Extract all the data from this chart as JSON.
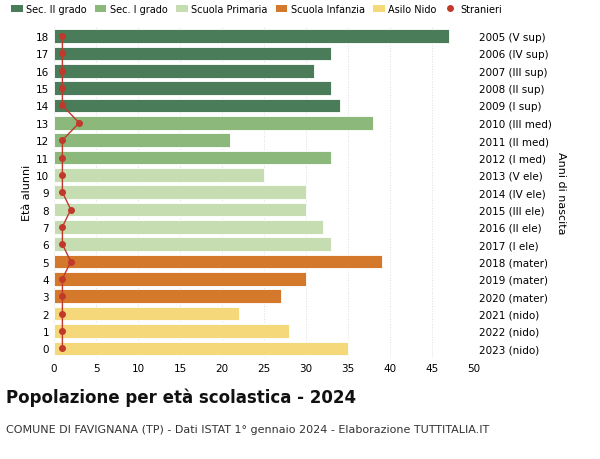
{
  "ages": [
    18,
    17,
    16,
    15,
    14,
    13,
    12,
    11,
    10,
    9,
    8,
    7,
    6,
    5,
    4,
    3,
    2,
    1,
    0
  ],
  "bar_values": [
    47,
    33,
    31,
    33,
    34,
    38,
    21,
    33,
    25,
    30,
    30,
    32,
    33,
    39,
    30,
    27,
    22,
    28,
    35
  ],
  "bar_colors": [
    "#4a7c59",
    "#4a7c59",
    "#4a7c59",
    "#4a7c59",
    "#4a7c59",
    "#8cb87b",
    "#8cb87b",
    "#8cb87b",
    "#c5ddb0",
    "#c5ddb0",
    "#c5ddb0",
    "#c5ddb0",
    "#c5ddb0",
    "#d4782b",
    "#d4782b",
    "#d4782b",
    "#f5d87a",
    "#f5d87a",
    "#f5d87a"
  ],
  "stranieri_values": [
    1,
    1,
    1,
    1,
    1,
    3,
    1,
    1,
    1,
    1,
    2,
    1,
    1,
    2,
    1,
    1,
    1,
    1,
    1
  ],
  "right_labels": [
    "2005 (V sup)",
    "2006 (IV sup)",
    "2007 (III sup)",
    "2008 (II sup)",
    "2009 (I sup)",
    "2010 (III med)",
    "2011 (II med)",
    "2012 (I med)",
    "2013 (V ele)",
    "2014 (IV ele)",
    "2015 (III ele)",
    "2016 (II ele)",
    "2017 (I ele)",
    "2018 (mater)",
    "2019 (mater)",
    "2020 (mater)",
    "2021 (nido)",
    "2022 (nido)",
    "2023 (nido)"
  ],
  "ylabel": "Età alunni",
  "right_ylabel": "Anni di nascita",
  "title": "Popolazione per età scolastica - 2024",
  "subtitle": "COMUNE DI FAVIGNANA (TP) - Dati ISTAT 1° gennaio 2024 - Elaborazione TUTTITALIA.IT",
  "xlim": [
    0,
    50
  ],
  "xticks": [
    0,
    5,
    10,
    15,
    20,
    25,
    30,
    35,
    40,
    45,
    50
  ],
  "legend_labels": [
    "Sec. II grado",
    "Sec. I grado",
    "Scuola Primaria",
    "Scuola Infanzia",
    "Asilo Nido",
    "Stranieri"
  ],
  "legend_colors": [
    "#4a7c59",
    "#8cb87b",
    "#c5ddb0",
    "#d4782b",
    "#f5d87a",
    "#c0392b"
  ],
  "background_color": "#ffffff",
  "grid_color": "#dddddd",
  "stranieri_color": "#c0392b",
  "bar_height": 0.78,
  "title_fontsize": 12,
  "subtitle_fontsize": 8,
  "axis_label_fontsize": 8,
  "tick_fontsize": 7.5,
  "legend_fontsize": 7
}
